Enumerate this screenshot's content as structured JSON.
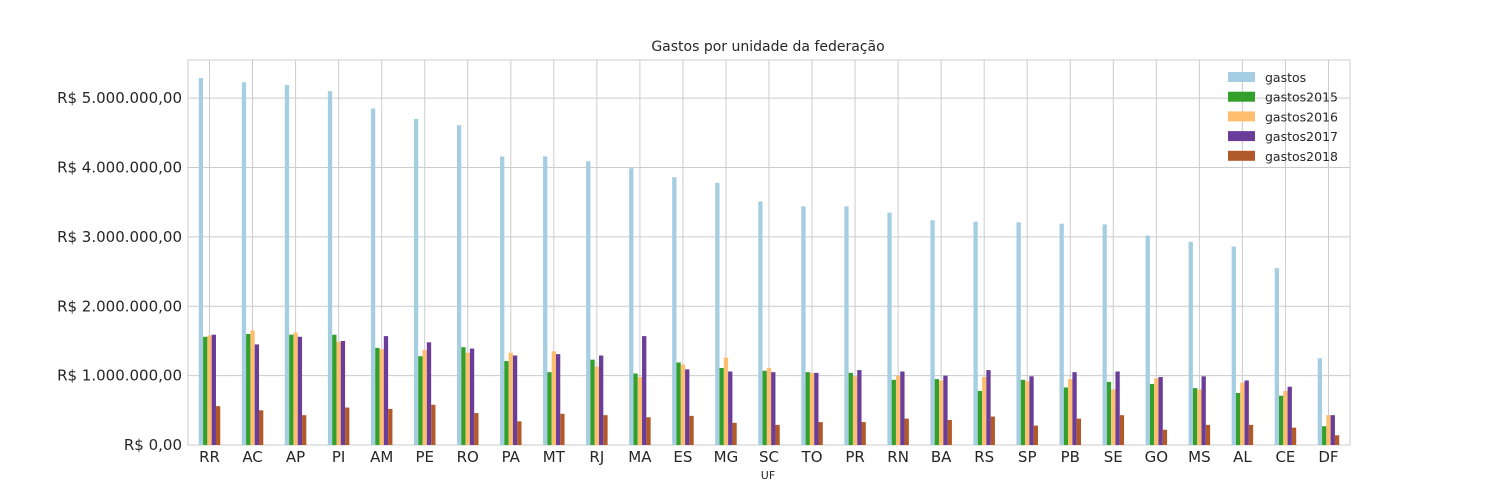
{
  "chart_data": {
    "type": "bar",
    "title": "Gastos por unidade da federação",
    "xlabel": "UF",
    "ylabel": "",
    "ylim": [
      0,
      5550000
    ],
    "ytick_values": [
      0,
      1000000,
      2000000,
      3000000,
      4000000,
      5000000
    ],
    "ytick_labels": [
      "R$ 0,00",
      "R$ 1.000.000,00",
      "R$ 2.000.000,00",
      "R$ 3.000.000,00",
      "R$ 4.000.000,00",
      "R$ 5.000.000,00"
    ],
    "grid": true,
    "legend_position": "top-right",
    "categories": [
      "RR",
      "AC",
      "AP",
      "PI",
      "AM",
      "PE",
      "RO",
      "PA",
      "MT",
      "RJ",
      "MA",
      "ES",
      "MG",
      "SC",
      "TO",
      "PR",
      "RN",
      "BA",
      "RS",
      "SP",
      "PB",
      "SE",
      "GO",
      "MS",
      "AL",
      "CE",
      "DF"
    ],
    "series": [
      {
        "name": "gastos",
        "color": "#a6cee3",
        "values": [
          5290000,
          5230000,
          5190000,
          5100000,
          4850000,
          4700000,
          4610000,
          4160000,
          4160000,
          4090000,
          3990000,
          3860000,
          3780000,
          3510000,
          3440000,
          3440000,
          3350000,
          3240000,
          3220000,
          3210000,
          3190000,
          3180000,
          3020000,
          2930000,
          2860000,
          2550000,
          1250000
        ]
      },
      {
        "name": "gastos2015",
        "color": "#33a02c",
        "values": [
          1560000,
          1600000,
          1590000,
          1590000,
          1400000,
          1280000,
          1410000,
          1210000,
          1050000,
          1230000,
          1030000,
          1190000,
          1110000,
          1070000,
          1050000,
          1040000,
          940000,
          950000,
          780000,
          940000,
          830000,
          910000,
          880000,
          820000,
          750000,
          710000,
          270000
        ]
      },
      {
        "name": "gastos2016",
        "color": "#fdbf6f",
        "values": [
          1580000,
          1650000,
          1620000,
          1490000,
          1380000,
          1370000,
          1330000,
          1330000,
          1350000,
          1130000,
          980000,
          1160000,
          1260000,
          1110000,
          1040000,
          990000,
          1000000,
          930000,
          980000,
          920000,
          950000,
          800000,
          960000,
          800000,
          900000,
          780000,
          430000
        ]
      },
      {
        "name": "gastos2017",
        "color": "#6a3d9a",
        "values": [
          1590000,
          1450000,
          1560000,
          1500000,
          1570000,
          1480000,
          1390000,
          1290000,
          1310000,
          1290000,
          1570000,
          1090000,
          1060000,
          1050000,
          1040000,
          1080000,
          1060000,
          1000000,
          1080000,
          990000,
          1050000,
          1060000,
          980000,
          990000,
          930000,
          840000,
          430000
        ]
      },
      {
        "name": "gastos2018",
        "color": "#b15928",
        "values": [
          560000,
          500000,
          430000,
          540000,
          520000,
          580000,
          460000,
          340000,
          450000,
          430000,
          400000,
          420000,
          320000,
          290000,
          330000,
          330000,
          380000,
          360000,
          410000,
          280000,
          380000,
          430000,
          220000,
          290000,
          290000,
          250000,
          140000
        ]
      }
    ]
  }
}
